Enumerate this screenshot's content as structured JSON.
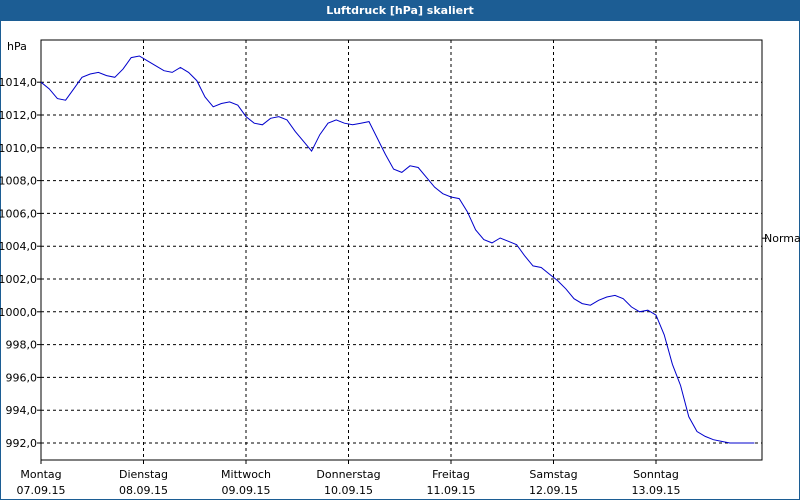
{
  "window": {
    "title": "Luftdruck [hPa] skaliert"
  },
  "chart_data": {
    "type": "line",
    "title": "Luftdruck [hPa] skaliert",
    "ylabel": "hPa",
    "y_unit_label": "hPa",
    "ylim": [
      991.0,
      1016.5
    ],
    "yticks": [
      992,
      994,
      996,
      998,
      1000,
      1002,
      1004,
      1006,
      1008,
      1010,
      1012,
      1014
    ],
    "ytick_labels": [
      "992,0",
      "994,0",
      "996,0",
      "998,0",
      "1000,0",
      "1002,0",
      "1004,0",
      "1006,0",
      "1008,0",
      "1010,0",
      "1012,0",
      "1014,0"
    ],
    "xlim": [
      0,
      7
    ],
    "xticks": [
      {
        "day": "Montag",
        "date": "07.09.15"
      },
      {
        "day": "Dienstag",
        "date": "08.09.15"
      },
      {
        "day": "Mittwoch",
        "date": "09.09.15"
      },
      {
        "day": "Donnerstag",
        "date": "10.09.15"
      },
      {
        "day": "Freitag",
        "date": "11.09.15"
      },
      {
        "day": "Samstag",
        "date": "12.09.15"
      },
      {
        "day": "Sonntag",
        "date": "13.09.15"
      }
    ],
    "reference_line": {
      "label": "Normal",
      "value": 1004.0
    },
    "grid": true,
    "series": [
      {
        "color": "#0000cc",
        "x": [
          0.0,
          0.08,
          0.16,
          0.24,
          0.32,
          0.4,
          0.48,
          0.56,
          0.64,
          0.72,
          0.8,
          0.88,
          0.96,
          1.04,
          1.12,
          1.2,
          1.28,
          1.36,
          1.44,
          1.52,
          1.6,
          1.68,
          1.76,
          1.84,
          1.92,
          2.0,
          2.08,
          2.16,
          2.24,
          2.32,
          2.4,
          2.48,
          2.56,
          2.64,
          2.72,
          2.8,
          2.88,
          2.96,
          3.04,
          3.12,
          3.2,
          3.28,
          3.36,
          3.44,
          3.52,
          3.6,
          3.68,
          3.76,
          3.84,
          3.92,
          4.0,
          4.08,
          4.16,
          4.24,
          4.32,
          4.4,
          4.48,
          4.56,
          4.64,
          4.72,
          4.8,
          4.88,
          4.96,
          5.04,
          5.12,
          5.2,
          5.28,
          5.36,
          5.44,
          5.52,
          5.6,
          5.68,
          5.76,
          5.84,
          5.92,
          6.0,
          6.08,
          6.16,
          6.24,
          6.32,
          6.4,
          6.48,
          6.56,
          6.64,
          6.72,
          6.8,
          6.88,
          6.96
        ],
        "y": [
          1014.0,
          1013.6,
          1013.0,
          1012.9,
          1013.6,
          1014.3,
          1014.5,
          1014.6,
          1014.4,
          1014.3,
          1014.8,
          1015.5,
          1015.6,
          1015.3,
          1015.0,
          1014.7,
          1014.6,
          1014.9,
          1014.6,
          1014.1,
          1013.1,
          1012.5,
          1012.7,
          1012.8,
          1012.6,
          1011.9,
          1011.5,
          1011.4,
          1011.8,
          1011.9,
          1011.7,
          1011.0,
          1010.4,
          1009.8,
          1010.8,
          1011.5,
          1011.7,
          1011.5,
          1011.4,
          1011.5,
          1011.6,
          1010.6,
          1009.6,
          1008.7,
          1008.5,
          1008.9,
          1008.8,
          1008.2,
          1007.6,
          1007.2,
          1007.0,
          1006.9,
          1006.1,
          1005.0,
          1004.4,
          1004.2,
          1004.5,
          1004.3,
          1004.1,
          1003.4,
          1002.8,
          1002.7,
          1002.3,
          1001.9,
          1001.4,
          1000.8,
          1000.5,
          1000.4,
          1000.7,
          1000.9,
          1001.0,
          1000.8,
          1000.3,
          1000.0,
          1000.1,
          999.8,
          998.6,
          996.8,
          995.5,
          993.6,
          992.7,
          992.4,
          992.2,
          992.1,
          992.0,
          992.0,
          992.0,
          992.0
        ]
      }
    ]
  }
}
